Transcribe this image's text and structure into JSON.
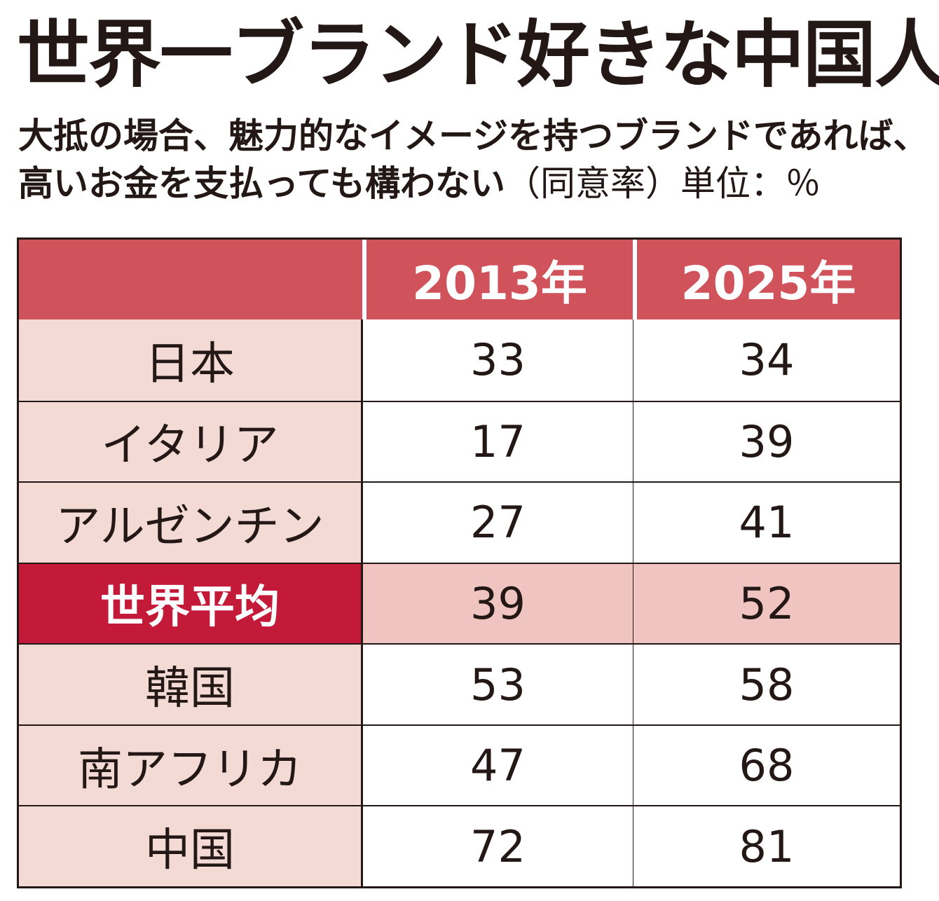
{
  "title": "世界一ブランド好きな中国人",
  "subtitle_main": "大抵の場合、魅力的なイメージを持つブランドであれば、高いお金を支払っても構わない",
  "subtitle_note": "（同意率）単位：％",
  "chart_data": {
    "type": "table",
    "columns": [
      "",
      "2013年",
      "2025年"
    ],
    "rows": [
      {
        "label": "日本",
        "values": [
          "33",
          "34"
        ]
      },
      {
        "label": "イタリア",
        "values": [
          "17",
          "39"
        ]
      },
      {
        "label": "アルゼンチン",
        "values": [
          "27",
          "41"
        ]
      },
      {
        "label": "世界平均",
        "values": [
          "39",
          "52"
        ],
        "highlight": true
      },
      {
        "label": "韓国",
        "values": [
          "53",
          "58"
        ]
      },
      {
        "label": "南アフリカ",
        "values": [
          "47",
          "68"
        ]
      },
      {
        "label": "中国",
        "values": [
          "72",
          "81"
        ]
      }
    ],
    "colors": {
      "header_bg": "#d0525b",
      "label_bg": "#f4dad4",
      "highlight_label_bg": "#c41a39",
      "highlight_value_bg": "#f0c4c0"
    }
  }
}
